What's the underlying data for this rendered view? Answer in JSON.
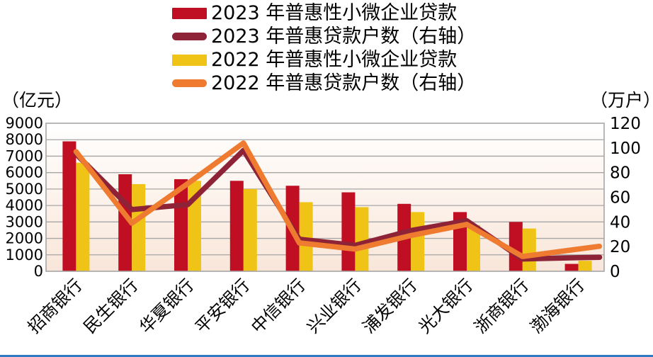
{
  "legend": {
    "items": [
      {
        "label": "2023 年普惠性小微企业贷款",
        "swatch": "bar",
        "color": "#c00e23"
      },
      {
        "label": "2023 年普惠贷款户数（右轴）",
        "swatch": "line",
        "color": "#8e2338"
      },
      {
        "label": "2022 年普惠性小微企业贷款",
        "swatch": "bar",
        "color": "#f0c417"
      },
      {
        "label": "2022 年普惠贷款户数（右轴）",
        "swatch": "line",
        "color": "#ee7b30"
      }
    ]
  },
  "axes": {
    "left_unit": "（亿元）",
    "right_unit": "（万户）"
  },
  "colors": {
    "bar_2023": "#c00e23",
    "bar_2022": "#f0c417",
    "line_2023": "#8e2338",
    "line_2022": "#ee7b30",
    "gridline": "#a6a6a6",
    "plot_border": "#a6a6a6",
    "plot_bg_top": "#ffffff",
    "plot_bg_bottom": "#f8e6d9",
    "bottom_rule": "#2f7ac5",
    "text": "#000000"
  },
  "chart_data": {
    "type": "bar",
    "subtype": "combo-bar-line-dual-axis",
    "categories": [
      "招商银行",
      "民生银行",
      "华夏银行",
      "平安银行",
      "中信银行",
      "兴业银行",
      "浦发银行",
      "光大银行",
      "浙商银行",
      "渤海银行"
    ],
    "series": [
      {
        "name": "2023 年普惠性小微企业贷款",
        "type": "bar",
        "axis": "left",
        "color": "#c00e23",
        "values": [
          7900,
          5900,
          5600,
          5500,
          5200,
          4800,
          4100,
          3600,
          3000,
          450
        ]
      },
      {
        "name": "2022 年普惠性小微企业贷款",
        "type": "bar",
        "axis": "left",
        "color": "#f0c417",
        "values": [
          6600,
          5300,
          5500,
          5000,
          4200,
          3900,
          3600,
          2800,
          2600,
          640
        ]
      },
      {
        "name": "2023 年普惠贷款户数（右轴）",
        "type": "line",
        "axis": "right",
        "color": "#8e2338",
        "values": [
          95,
          50,
          54,
          98,
          26,
          21,
          33,
          41,
          10,
          11
        ]
      },
      {
        "name": "2022 年普惠贷款户数（右轴）",
        "type": "line",
        "axis": "right",
        "color": "#ee7b30",
        "values": [
          97,
          39,
          71,
          104,
          23,
          18,
          29,
          38,
          12,
          18
        ]
      }
    ],
    "left_axis": {
      "label": "（亿元）",
      "min": 0,
      "max": 9000,
      "step": 1000,
      "ticks": [
        9000,
        8000,
        7000,
        6000,
        5000,
        4000,
        3000,
        2000,
        1000,
        0
      ]
    },
    "right_axis": {
      "label": "（万户）",
      "min": 0,
      "max": 120,
      "step": 20,
      "ticks": [
        120,
        100,
        80,
        60,
        40,
        20,
        0
      ]
    },
    "grid": true,
    "legend_position": "top"
  }
}
